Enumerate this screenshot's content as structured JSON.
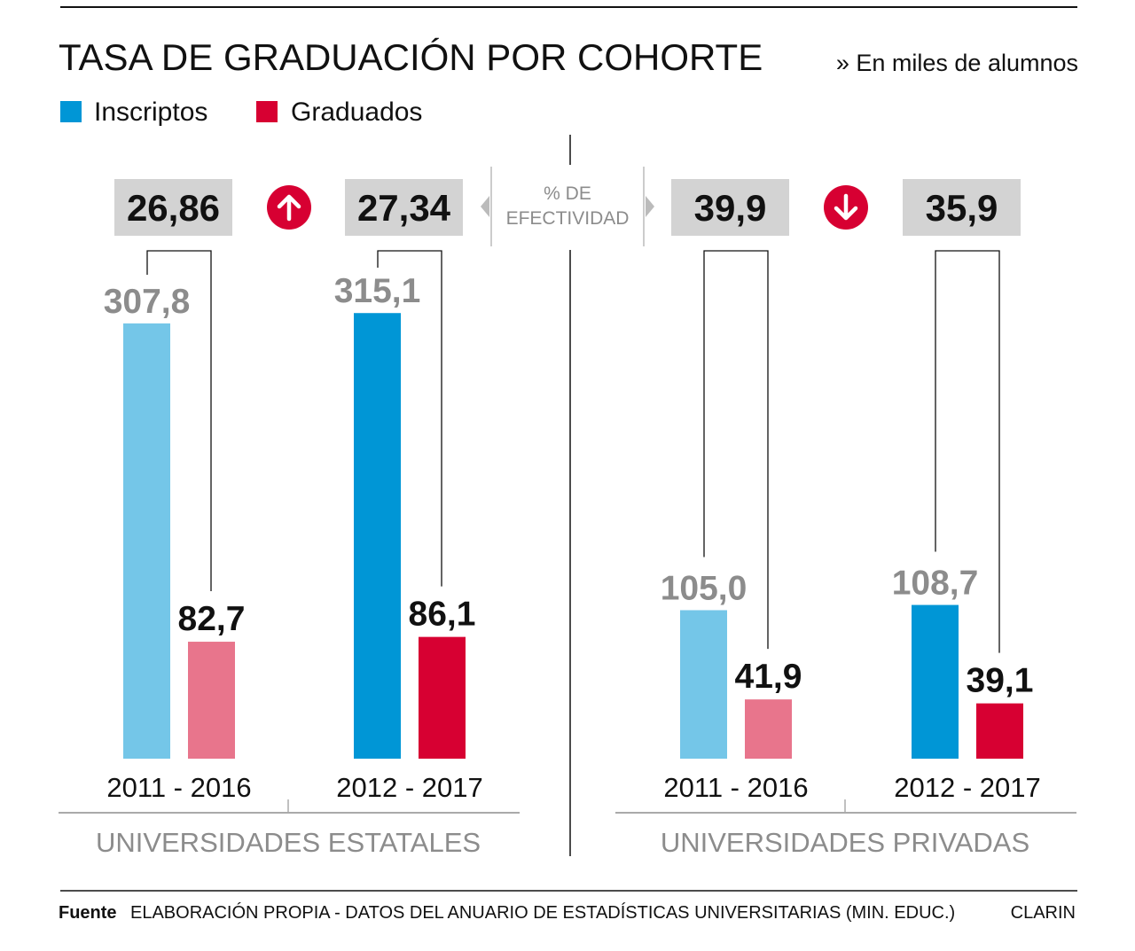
{
  "header": {
    "title": "TASA DE GRADUACIÓN POR COHORTE",
    "unit_note": "» En miles de alumnos"
  },
  "legend": [
    {
      "label": "Inscriptos",
      "color": "#0096d6"
    },
    {
      "label": "Graduados",
      "color": "#d70032"
    }
  ],
  "efectividad_label": [
    "% DE",
    "EFECTIVIDAD"
  ],
  "colors": {
    "inscriptos_dark": "#0096d6",
    "inscriptos_light": "#74c6e8",
    "graduados_dark": "#d70032",
    "graduados_light": "#e8758c",
    "box_bg": "#d3d3d3",
    "muted_text": "#8c8c8c"
  },
  "footer": {
    "source_label": "Fuente",
    "source_text": "ELABORACIÓN PROPIA - DATOS DEL ANUARIO DE ESTADÍSTICAS UNIVERSITARIAS (MIN. EDUC.)",
    "brand": "CLARIN"
  },
  "chart_data": {
    "type": "bar",
    "title": "TASA DE GRADUACIÓN POR COHORTE",
    "unit": "miles de alumnos",
    "series_names": [
      "Inscriptos",
      "Graduados"
    ],
    "groups": [
      {
        "name": "UNIVERSIDADES ESTATALES",
        "trend": "up",
        "cohorts": [
          {
            "label": "2011 - 2016",
            "inscriptos": 307.8,
            "inscriptos_text": "307,8",
            "graduados": 82.7,
            "graduados_text": "82,7",
            "efectividad": "26,86",
            "emphasis": "light"
          },
          {
            "label": "2012 - 2017",
            "inscriptos": 315.1,
            "inscriptos_text": "315,1",
            "graduados": 86.1,
            "graduados_text": "86,1",
            "efectividad": "27,34",
            "emphasis": "dark"
          }
        ]
      },
      {
        "name": "UNIVERSIDADES PRIVADAS",
        "trend": "down",
        "cohorts": [
          {
            "label": "2011 - 2016",
            "inscriptos": 105.0,
            "inscriptos_text": "105,0",
            "graduados": 41.9,
            "graduados_text": "41,9",
            "efectividad": "39,9",
            "emphasis": "light"
          },
          {
            "label": "2012 - 2017",
            "inscriptos": 108.7,
            "inscriptos_text": "108,7",
            "graduados": 39.1,
            "graduados_text": "39,1",
            "efectividad": "35,9",
            "emphasis": "dark"
          }
        ]
      }
    ]
  }
}
